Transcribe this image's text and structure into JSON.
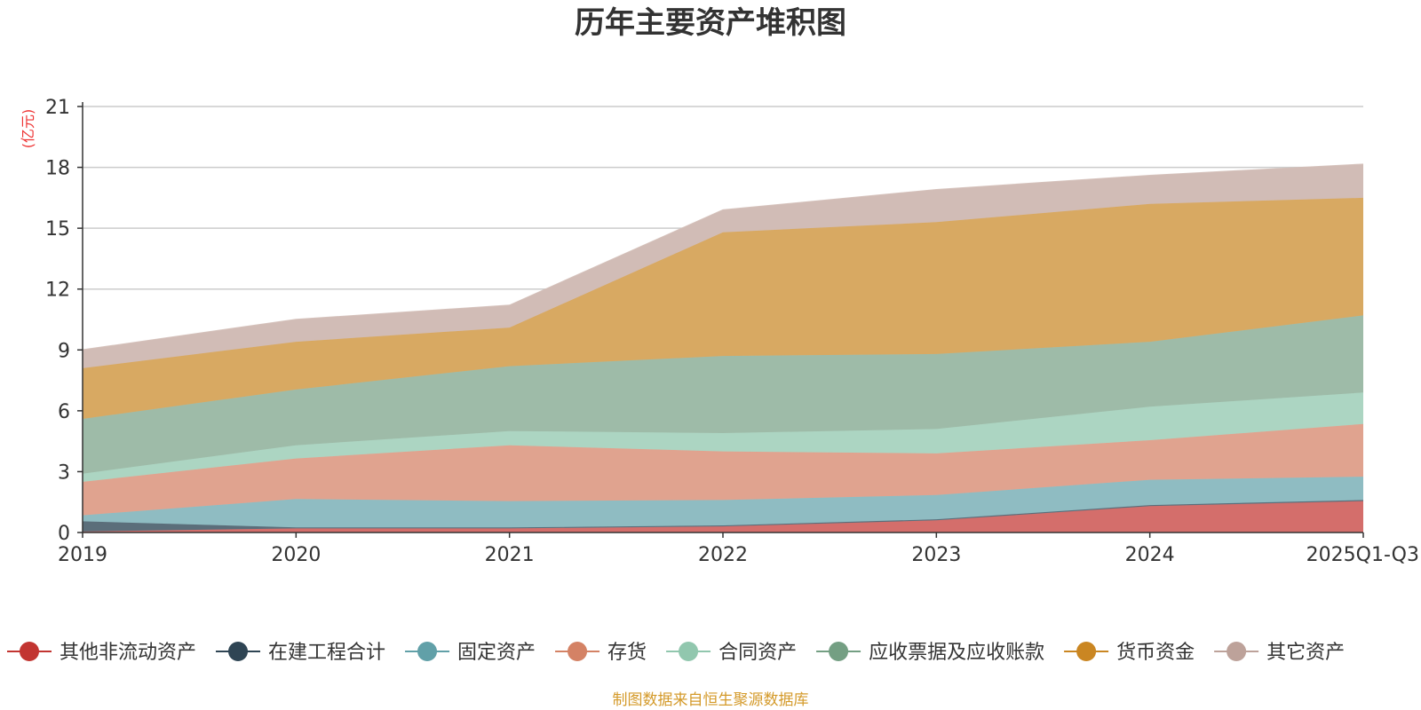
{
  "chart_data": {
    "type": "area",
    "stacked": true,
    "title": "历年主要资产堆积图",
    "ylabel": "(亿元)",
    "xlabel": "",
    "ylim": [
      0,
      21
    ],
    "yticks": [
      0,
      3,
      6,
      9,
      12,
      15,
      18,
      21
    ],
    "categories": [
      "2019",
      "2020",
      "2021",
      "2022",
      "2023",
      "2024",
      "2025Q1-Q3"
    ],
    "grid": true,
    "legend_position": "bottom",
    "series": [
      {
        "name": "其他非流动资产",
        "color": "#c23531",
        "fill": "#d46e6b",
        "values": [
          0.05,
          0.2,
          0.2,
          0.3,
          0.6,
          1.3,
          1.55
        ]
      },
      {
        "name": "在建工程合计",
        "color": "#2f4554",
        "fill": "#5b6e7a",
        "values": [
          0.5,
          0.05,
          0.05,
          0.05,
          0.05,
          0.05,
          0.05
        ]
      },
      {
        "name": "固定资产",
        "color": "#61a0a8",
        "fill": "#8fbcc2",
        "values": [
          0.3,
          1.4,
          1.3,
          1.25,
          1.2,
          1.25,
          1.15
        ]
      },
      {
        "name": "存货",
        "color": "#d48265",
        "fill": "#e0a38f",
        "values": [
          1.65,
          2.0,
          2.75,
          2.4,
          2.05,
          1.95,
          2.6
        ]
      },
      {
        "name": "合同资产",
        "color": "#91c7ae",
        "fill": "#acd5c2",
        "values": [
          0.4,
          0.65,
          0.7,
          0.9,
          1.2,
          1.65,
          1.55
        ]
      },
      {
        "name": "应收票据及应收账款",
        "color": "#749f83",
        "fill": "#9ebba8",
        "values": [
          2.7,
          2.75,
          3.2,
          3.8,
          3.7,
          3.2,
          3.8
        ]
      },
      {
        "name": "货币资金",
        "color": "#ca8622",
        "fill": "#d8a962",
        "values": [
          2.5,
          2.35,
          1.9,
          6.1,
          6.5,
          6.8,
          5.8
        ]
      },
      {
        "name": "其它资产",
        "color": "#bda29a",
        "fill": "#d1bcb6",
        "values": [
          0.9,
          1.1,
          1.1,
          1.1,
          1.6,
          1.4,
          1.65
        ]
      }
    ]
  },
  "source_note": "制图数据来自恒生聚源数据库"
}
